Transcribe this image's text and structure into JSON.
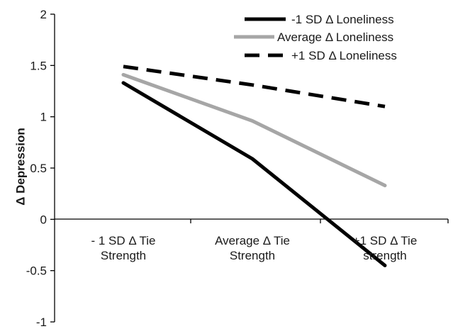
{
  "chart_data": {
    "type": "line",
    "title": "",
    "xlabel": "",
    "ylabel": "Δ Depression",
    "ylim": [
      -1,
      2
    ],
    "yticks": [
      2,
      1.5,
      1,
      0.5,
      0,
      -0.5,
      -1
    ],
    "ytick_labels": [
      "2",
      "1.5",
      "1",
      "0.5",
      "0",
      "-0.5",
      "-1"
    ],
    "categories": [
      [
        "- 1 SD Δ Tie",
        "Strength"
      ],
      [
        "Average Δ Tie",
        "Strength"
      ],
      [
        "+1 SD Δ Tie",
        "strength"
      ]
    ],
    "grid": false,
    "legend_position": "top-right",
    "series": [
      {
        "name": "-1 SD Δ Loneliness",
        "values": [
          1.33,
          0.59,
          -0.45
        ],
        "color": "#000000",
        "dash": "solid"
      },
      {
        "name": "Average Δ Loneliness",
        "values": [
          1.41,
          0.96,
          0.33
        ],
        "color": "#a6a6a6",
        "dash": "solid"
      },
      {
        "name": "+1 SD Δ Loneliness",
        "values": [
          1.49,
          1.31,
          1.1
        ],
        "color": "#000000",
        "dash": "dashed"
      }
    ]
  }
}
